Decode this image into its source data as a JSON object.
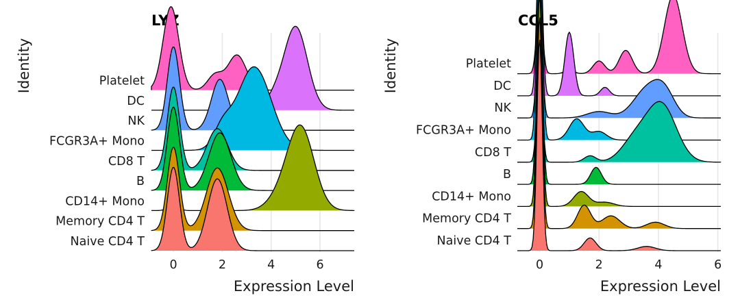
{
  "chart_data": [
    {
      "type": "ridgeline",
      "title": "LYZ",
      "xlabel": "Expression Level",
      "ylabel": "Identity",
      "xlim": [
        -0.9,
        7.4
      ],
      "xticks": [
        0,
        2,
        4,
        6
      ],
      "xtick_labels": [
        "0",
        "2",
        "4",
        "6"
      ],
      "categories": [
        "Naive CD4 T",
        "Memory CD4 T",
        "CD14+ Mono",
        "B",
        "CD8 T",
        "FCGR3A+ Mono",
        "NK",
        "DC",
        "Platelet"
      ],
      "series": [
        {
          "name": "Naive CD4 T",
          "color": "#F8766D",
          "peaks": [
            {
              "x": 0.0,
              "h": 1.0,
              "w": 0.25
            },
            {
              "x": 1.8,
              "h": 0.86,
              "w": 0.4
            }
          ]
        },
        {
          "name": "Memory CD4 T",
          "color": "#D39200",
          "peaks": [
            {
              "x": 0.0,
              "h": 1.0,
              "w": 0.25
            },
            {
              "x": 1.8,
              "h": 0.75,
              "w": 0.45
            }
          ]
        },
        {
          "name": "CD14+ Mono",
          "color": "#93AA00",
          "peaks": [
            {
              "x": 0.0,
              "h": 0.08,
              "w": 0.2
            },
            {
              "x": 5.2,
              "h": 1.0,
              "w": 0.55
            },
            {
              "x": 4.3,
              "h": 0.12,
              "w": 0.5
            }
          ]
        },
        {
          "name": "B",
          "color": "#00BA38",
          "peaks": [
            {
              "x": 0.0,
              "h": 1.0,
              "w": 0.25
            },
            {
              "x": 1.9,
              "h": 0.69,
              "w": 0.45
            }
          ]
        },
        {
          "name": "CD8 T",
          "color": "#00C19F",
          "peaks": [
            {
              "x": 0.0,
              "h": 1.0,
              "w": 0.25
            },
            {
              "x": 1.8,
              "h": 0.5,
              "w": 0.42
            }
          ]
        },
        {
          "name": "FCGR3A+ Mono",
          "color": "#00B9E3",
          "peaks": [
            {
              "x": 3.3,
              "h": 1.0,
              "w": 0.7
            },
            {
              "x": 2.0,
              "h": 0.22,
              "w": 0.35
            }
          ]
        },
        {
          "name": "NK",
          "color": "#619CFF",
          "peaks": [
            {
              "x": 0.0,
              "h": 1.0,
              "w": 0.25
            },
            {
              "x": 1.9,
              "h": 0.61,
              "w": 0.35
            },
            {
              "x": 3.2,
              "h": 0.08,
              "w": 0.4
            }
          ]
        },
        {
          "name": "DC",
          "color": "#DB72FB",
          "peaks": [
            {
              "x": 5.0,
              "h": 1.0,
              "w": 0.48
            },
            {
              "x": 4.1,
              "h": 0.12,
              "w": 0.35
            }
          ]
        },
        {
          "name": "Platelet",
          "color": "#FF61C3",
          "peaks": [
            {
              "x": -0.1,
              "h": 1.0,
              "w": 0.32
            },
            {
              "x": 2.6,
              "h": 0.42,
              "w": 0.38
            },
            {
              "x": 1.7,
              "h": 0.18,
              "w": 0.3
            }
          ]
        }
      ]
    },
    {
      "type": "ridgeline",
      "title": "CCL5",
      "xlabel": "Expression Level",
      "ylabel": "Identity",
      "xlim": [
        -0.75,
        6.1
      ],
      "xticks": [
        0,
        2,
        4,
        6
      ],
      "xtick_labels": [
        "0",
        "2",
        "4",
        "6"
      ],
      "categories": [
        "Naive CD4 T",
        "Memory CD4 T",
        "CD14+ Mono",
        "B",
        "CD8 T",
        "FCGR3A+ Mono",
        "NK",
        "DC",
        "Platelet"
      ],
      "series": [
        {
          "name": "Naive CD4 T",
          "color": "#F8766D",
          "peaks": [
            {
              "x": 0.0,
              "h": 1.0,
              "w": 0.09
            },
            {
              "x": 1.7,
              "h": 0.06,
              "w": 0.2
            },
            {
              "x": 3.6,
              "h": 0.02,
              "w": 0.3
            }
          ]
        },
        {
          "name": "Memory CD4 T",
          "color": "#D39200",
          "peaks": [
            {
              "x": 0.0,
              "h": 1.0,
              "w": 0.09
            },
            {
              "x": 1.5,
              "h": 0.11,
              "w": 0.22
            },
            {
              "x": 2.4,
              "h": 0.06,
              "w": 0.3
            },
            {
              "x": 3.9,
              "h": 0.03,
              "w": 0.3
            }
          ]
        },
        {
          "name": "CD14+ Mono",
          "color": "#93AA00",
          "peaks": [
            {
              "x": 0.0,
              "h": 1.0,
              "w": 0.09
            },
            {
              "x": 1.4,
              "h": 0.07,
              "w": 0.25
            },
            {
              "x": 2.2,
              "h": 0.02,
              "w": 0.3
            }
          ]
        },
        {
          "name": "B",
          "color": "#00BA38",
          "peaks": [
            {
              "x": 0.0,
              "h": 1.0,
              "w": 0.09
            },
            {
              "x": 1.9,
              "h": 0.08,
              "w": 0.18
            }
          ]
        },
        {
          "name": "CD8 T",
          "color": "#00C19F",
          "peaks": [
            {
              "x": 0.0,
              "h": 0.5,
              "w": 0.09
            },
            {
              "x": 1.7,
              "h": 0.03,
              "w": 0.2
            },
            {
              "x": 4.1,
              "h": 0.27,
              "w": 0.5
            },
            {
              "x": 3.2,
              "h": 0.1,
              "w": 0.45
            }
          ]
        },
        {
          "name": "FCGR3A+ Mono",
          "color": "#00B9E3",
          "peaks": [
            {
              "x": 0.0,
              "h": 1.0,
              "w": 0.09
            },
            {
              "x": 1.25,
              "h": 0.1,
              "w": 0.25
            },
            {
              "x": 2.0,
              "h": 0.04,
              "w": 0.25
            }
          ]
        },
        {
          "name": "NK",
          "color": "#619CFF",
          "peaks": [
            {
              "x": 0.0,
              "h": 0.55,
              "w": 0.09
            },
            {
              "x": 3.6,
              "h": 0.13,
              "w": 0.45
            },
            {
              "x": 4.2,
              "h": 0.11,
              "w": 0.35
            },
            {
              "x": 2.0,
              "h": 0.03,
              "w": 0.4
            }
          ]
        },
        {
          "name": "DC",
          "color": "#DB72FB",
          "peaks": [
            {
              "x": 0.0,
              "h": 0.8,
              "w": 0.09
            },
            {
              "x": 1.0,
              "h": 0.3,
              "w": 0.15
            },
            {
              "x": 2.2,
              "h": 0.04,
              "w": 0.15
            }
          ]
        },
        {
          "name": "Platelet",
          "color": "#FF61C3",
          "peaks": [
            {
              "x": 0.0,
              "h": 0.34,
              "w": 0.1
            },
            {
              "x": 4.5,
              "h": 0.37,
              "w": 0.3
            },
            {
              "x": 2.9,
              "h": 0.11,
              "w": 0.22
            },
            {
              "x": 2.0,
              "h": 0.06,
              "w": 0.2
            },
            {
              "x": 1.0,
              "h": 0.02,
              "w": 0.15
            }
          ]
        }
      ]
    }
  ]
}
